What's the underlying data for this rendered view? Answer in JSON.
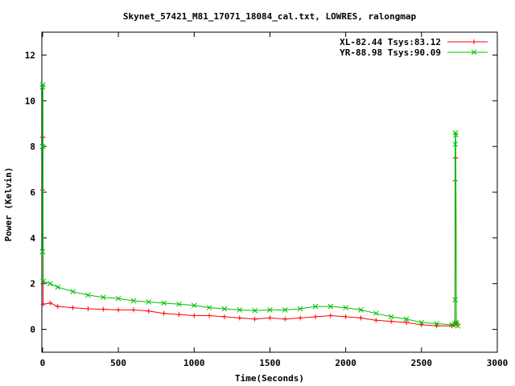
{
  "chart_data": {
    "type": "line",
    "title": "Skynet_57421_M81_17071_18084_cal.txt, LOWRES, ralongmap",
    "xlabel": "Time(Seconds)",
    "ylabel": "Power (Kelvin)",
    "xlim": [
      -5,
      3000
    ],
    "ylim": [
      -1,
      13
    ],
    "xticks": [
      0,
      500,
      1000,
      1500,
      2000,
      2500,
      3000
    ],
    "yticks": [
      0,
      2,
      4,
      6,
      8,
      10,
      12
    ],
    "grid": false,
    "legend_position": "top-right",
    "series": [
      {
        "name": "XL-82.44 Tsys:83.12",
        "color": "#ff0000",
        "marker": "plus",
        "points": [
          [
            0,
            6.1
          ],
          [
            0,
            8.4
          ],
          [
            2,
            8.4
          ],
          [
            4,
            1.1
          ],
          [
            50,
            1.15
          ],
          [
            100,
            1.0
          ],
          [
            200,
            0.95
          ],
          [
            300,
            0.9
          ],
          [
            400,
            0.88
          ],
          [
            500,
            0.85
          ],
          [
            600,
            0.85
          ],
          [
            700,
            0.8
          ],
          [
            800,
            0.7
          ],
          [
            900,
            0.65
          ],
          [
            1000,
            0.6
          ],
          [
            1100,
            0.6
          ],
          [
            1200,
            0.55
          ],
          [
            1300,
            0.5
          ],
          [
            1400,
            0.45
          ],
          [
            1500,
            0.5
          ],
          [
            1600,
            0.45
          ],
          [
            1700,
            0.5
          ],
          [
            1800,
            0.55
          ],
          [
            1900,
            0.6
          ],
          [
            2000,
            0.55
          ],
          [
            2100,
            0.5
          ],
          [
            2200,
            0.4
          ],
          [
            2300,
            0.35
          ],
          [
            2400,
            0.3
          ],
          [
            2500,
            0.2
          ],
          [
            2600,
            0.15
          ],
          [
            2700,
            0.15
          ],
          [
            2720,
            0.2
          ],
          [
            2722,
            6.5
          ],
          [
            2722,
            7.5
          ],
          [
            2726,
            7.5
          ],
          [
            2730,
            0.3
          ],
          [
            2740,
            0.2
          ]
        ]
      },
      {
        "name": "YR-88.98 Tsys:90.09",
        "color": "#00c000",
        "marker": "cross",
        "points": [
          [
            0,
            3.4
          ],
          [
            0,
            8.0
          ],
          [
            0,
            10.6
          ],
          [
            2,
            10.7
          ],
          [
            4,
            2.1
          ],
          [
            50,
            2.0
          ],
          [
            100,
            1.85
          ],
          [
            200,
            1.65
          ],
          [
            300,
            1.5
          ],
          [
            400,
            1.4
          ],
          [
            500,
            1.35
          ],
          [
            600,
            1.25
          ],
          [
            700,
            1.2
          ],
          [
            800,
            1.15
          ],
          [
            900,
            1.1
          ],
          [
            1000,
            1.05
          ],
          [
            1100,
            0.95
          ],
          [
            1200,
            0.9
          ],
          [
            1300,
            0.85
          ],
          [
            1400,
            0.82
          ],
          [
            1500,
            0.85
          ],
          [
            1600,
            0.85
          ],
          [
            1700,
            0.9
          ],
          [
            1800,
            1.0
          ],
          [
            1900,
            1.0
          ],
          [
            2000,
            0.95
          ],
          [
            2100,
            0.85
          ],
          [
            2200,
            0.7
          ],
          [
            2300,
            0.55
          ],
          [
            2400,
            0.45
          ],
          [
            2500,
            0.3
          ],
          [
            2600,
            0.25
          ],
          [
            2700,
            0.2
          ],
          [
            2720,
            0.25
          ],
          [
            2722,
            1.3
          ],
          [
            2722,
            8.1
          ],
          [
            2724,
            8.6
          ],
          [
            2726,
            8.5
          ],
          [
            2730,
            0.3
          ],
          [
            2740,
            0.15
          ]
        ]
      }
    ]
  }
}
